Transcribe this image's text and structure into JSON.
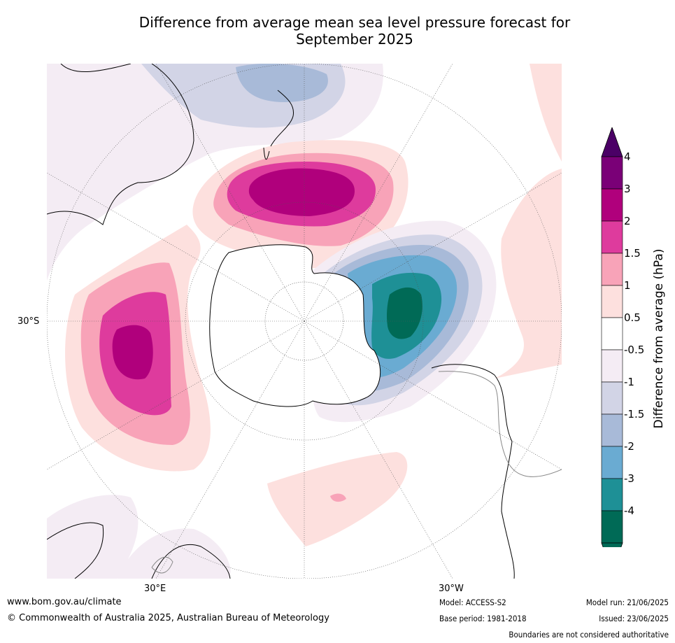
{
  "title_line1": "Difference from average mean sea level pressure forecast for",
  "title_line2": "September 2025",
  "map": {
    "projection": "south-polar-stereographic",
    "longitude_labels": [
      "30°S",
      "30°E",
      "30°W"
    ]
  },
  "colorbar": {
    "label": "Difference from average (hPa)",
    "tick_labels": [
      "4",
      "3",
      "2",
      "1.5",
      "1",
      "0.5",
      "-0.5",
      "-1",
      "-1.5",
      "-2",
      "-3",
      "-4"
    ],
    "bands_top_to_bottom": [
      "#7a0077",
      "#b0007c",
      "#de3b9d",
      "#f8a3b8",
      "#fde0de",
      "#ffffff",
      "#f4ecf4",
      "#d2d4e6",
      "#a8bad8",
      "#6aabd2",
      "#1e9096",
      "#006a56"
    ],
    "over_color": "#4b0066",
    "under_color": "#006a56"
  },
  "footer": {
    "website": "www.bom.gov.au/climate",
    "copyright": "© Commonwealth of Australia 2025, Australian Bureau of Meteorology",
    "model": "Model: ACCESS-S2",
    "base_period": "Base period: 1981-2018",
    "model_run": "Model run: 21/06/2025",
    "issued": "Issued: 23/06/2025",
    "disclaimer": "Boundaries are not considered authoritative"
  }
}
